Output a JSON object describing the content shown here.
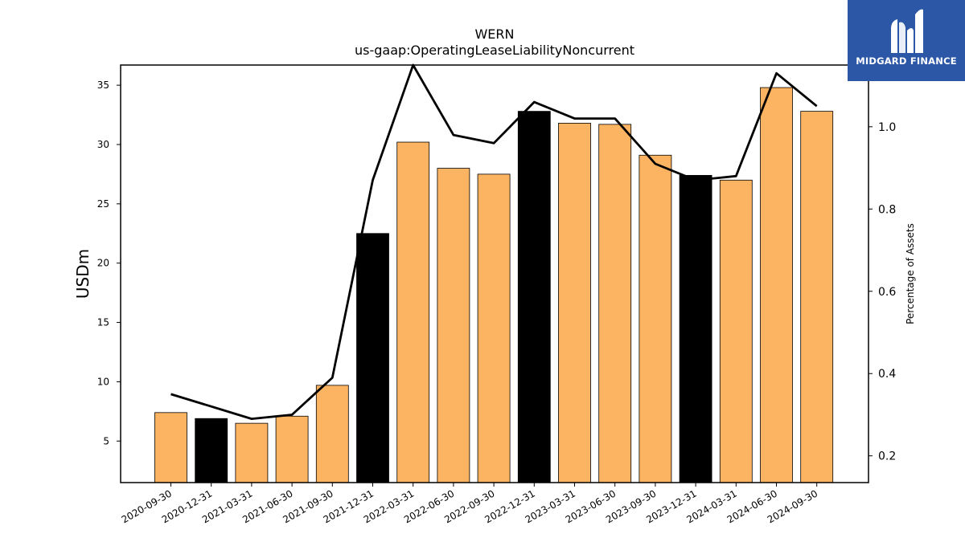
{
  "chart_data": {
    "type": "bar",
    "title": "WERN",
    "subtitle": "us-gaap:OperatingLeaseLiabilityNoncurrent",
    "ylabel": "USDm",
    "y2label": "Percentage of Assets",
    "categories": [
      "2020-09-30",
      "2020-12-31",
      "2021-03-31",
      "2021-06-30",
      "2021-09-30",
      "2021-12-31",
      "2022-03-31",
      "2022-06-30",
      "2022-09-30",
      "2022-12-31",
      "2023-03-31",
      "2023-06-30",
      "2023-09-30",
      "2023-12-31",
      "2024-03-31",
      "2024-06-30",
      "2024-09-30"
    ],
    "values": [
      7.4,
      6.9,
      6.5,
      7.1,
      9.7,
      22.5,
      30.2,
      28.0,
      27.5,
      32.8,
      31.8,
      31.7,
      29.1,
      27.4,
      27.0,
      34.8,
      32.8
    ],
    "bar_colors": [
      "#fdb462",
      "#000000",
      "#fdb462",
      "#fdb462",
      "#fdb462",
      "#000000",
      "#fdb462",
      "#fdb462",
      "#fdb462",
      "#000000",
      "#fdb462",
      "#fdb462",
      "#fdb462",
      "#000000",
      "#fdb462",
      "#fdb462",
      "#fdb462"
    ],
    "line_values": [
      0.35,
      0.32,
      0.29,
      0.3,
      0.39,
      0.87,
      1.15,
      0.98,
      0.96,
      1.06,
      1.02,
      1.02,
      0.91,
      0.87,
      0.88,
      1.13,
      1.05
    ],
    "line_color": "#000000",
    "ylim": [
      1.5,
      36.7
    ],
    "y2lim": [
      0.135,
      1.15
    ],
    "yticks": [
      5,
      10,
      15,
      20,
      25,
      30,
      35
    ],
    "y2ticks": [
      0.2,
      0.4,
      0.6,
      0.8,
      1.0
    ],
    "grid": false,
    "legend": "none"
  },
  "logo": {
    "brand_text": "MIDGARD FINANCE",
    "background": "#2b57a6"
  }
}
